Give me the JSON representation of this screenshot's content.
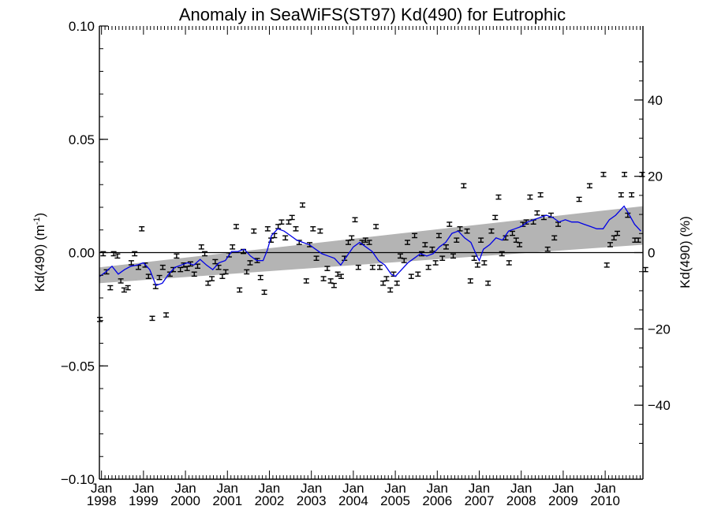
{
  "chart_data": {
    "type": "scatter",
    "title": "Anomaly in SeaWiFS(ST97) Kd(490) for Eutrophic",
    "ylabel_left": "Kd(490) (m",
    "ylabel_left_sup": "-1",
    "ylabel_left_close": ")",
    "ylabel_right": "Kd(490) (%)",
    "xlim": [
      1997.95,
      2010.9
    ],
    "ylim_left": [
      -0.1,
      0.1
    ],
    "ylim_right": [
      -59.4,
      59.4
    ],
    "left_ticks": [
      {
        "value": 0.1,
        "label": "0.10"
      },
      {
        "value": 0.05,
        "label": "0.05"
      },
      {
        "value": 0.0,
        "label": "0.00"
      },
      {
        "value": -0.05,
        "label": "−0.05"
      },
      {
        "value": -0.1,
        "label": "−0.10"
      }
    ],
    "right_ticks": [
      {
        "value": 40,
        "label": "40"
      },
      {
        "value": 20,
        "label": "20"
      },
      {
        "value": 0,
        "label": "0"
      },
      {
        "value": -20,
        "label": "−20"
      },
      {
        "value": -40,
        "label": "−40"
      }
    ],
    "x_ticks": [
      {
        "value": 1998.0,
        "month": "Jan",
        "year": "1998"
      },
      {
        "value": 1999.0,
        "month": "Jan",
        "year": "1999"
      },
      {
        "value": 2000.0,
        "month": "Jan",
        "year": "2000"
      },
      {
        "value": 2001.0,
        "month": "Jan",
        "year": "2001"
      },
      {
        "value": 2002.0,
        "month": "Jan",
        "year": "2002"
      },
      {
        "value": 2003.0,
        "month": "Jan",
        "year": "2003"
      },
      {
        "value": 2004.0,
        "month": "Jan",
        "year": "2004"
      },
      {
        "value": 2005.0,
        "month": "Jan",
        "year": "2005"
      },
      {
        "value": 2006.0,
        "month": "Jan",
        "year": "2006"
      },
      {
        "value": 2007.0,
        "month": "Jan",
        "year": "2007"
      },
      {
        "value": 2008.0,
        "month": "Jan",
        "year": "2008"
      },
      {
        "value": 2009.0,
        "month": "Jan",
        "year": "2009"
      },
      {
        "value": 2010.0,
        "month": "Jan",
        "year": "2010"
      }
    ],
    "zero_line": 0.0,
    "trend_band": {
      "x": [
        1997.95,
        2010.9
      ],
      "upper": [
        -0.0065,
        0.0205
      ],
      "lower": [
        -0.0135,
        0.0035
      ],
      "color": "#b4b4b4"
    },
    "series": [
      {
        "type": "errorbar_points",
        "color": "#000000",
        "error": 0.0009,
        "points": [
          [
            1997.96,
            -0.0295
          ],
          [
            1998.04,
            -0.0005
          ],
          [
            1998.12,
            -0.0085
          ],
          [
            1998.21,
            -0.0155
          ],
          [
            1998.29,
            -0.0005
          ],
          [
            1998.38,
            -0.0015
          ],
          [
            1998.46,
            -0.0125
          ],
          [
            1998.54,
            -0.0165
          ],
          [
            1998.63,
            -0.0155
          ],
          [
            1998.71,
            -0.0045
          ],
          [
            1998.79,
            -0.0005
          ],
          [
            1998.88,
            -0.0065
          ],
          [
            1998.96,
            0.0105
          ],
          [
            1999.04,
            -0.0055
          ],
          [
            1999.12,
            -0.0105
          ],
          [
            1999.21,
            -0.029
          ],
          [
            1999.29,
            -0.015
          ],
          [
            1999.38,
            -0.011
          ],
          [
            1999.46,
            -0.0065
          ],
          [
            1999.54,
            -0.0275
          ],
          [
            1999.63,
            -0.0095
          ],
          [
            1999.71,
            -0.0075
          ],
          [
            1999.79,
            -0.0015
          ],
          [
            1999.88,
            -0.0075
          ],
          [
            1999.96,
            -0.0055
          ],
          [
            2000.04,
            -0.007
          ],
          [
            2000.12,
            -0.005
          ],
          [
            2000.21,
            -0.0095
          ],
          [
            2000.29,
            -0.006
          ],
          [
            2000.38,
            0.0025
          ],
          [
            2000.46,
            -0.0005
          ],
          [
            2000.54,
            -0.0135
          ],
          [
            2000.63,
            -0.0115
          ],
          [
            2000.71,
            -0.004
          ],
          [
            2000.79,
            -0.0065
          ],
          [
            2000.88,
            -0.0105
          ],
          [
            2000.96,
            -0.0085
          ],
          [
            2001.04,
            -0.001
          ],
          [
            2001.12,
            0.0025
          ],
          [
            2001.21,
            0.0115
          ],
          [
            2001.29,
            -0.0165
          ],
          [
            2001.38,
            0.0005
          ],
          [
            2001.46,
            -0.0085
          ],
          [
            2001.54,
            -0.0045
          ],
          [
            2001.63,
            0.0095
          ],
          [
            2001.71,
            -0.0035
          ],
          [
            2001.79,
            -0.011
          ],
          [
            2001.88,
            -0.0175
          ],
          [
            2001.96,
            0.0105
          ],
          [
            2002.04,
            0.0055
          ],
          [
            2002.12,
            0.0075
          ],
          [
            2002.21,
            0.0115
          ],
          [
            2002.29,
            0.0135
          ],
          [
            2002.38,
            0.0065
          ],
          [
            2002.46,
            0.0135
          ],
          [
            2002.54,
            0.0155
          ],
          [
            2002.63,
            0.0105
          ],
          [
            2002.71,
            0.0045
          ],
          [
            2002.79,
            0.021
          ],
          [
            2002.88,
            -0.0125
          ],
          [
            2002.96,
            0.0035
          ],
          [
            2003.04,
            0.0105
          ],
          [
            2003.12,
            -0.0025
          ],
          [
            2003.21,
            0.0095
          ],
          [
            2003.29,
            -0.0115
          ],
          [
            2003.38,
            -0.007
          ],
          [
            2003.46,
            -0.0125
          ],
          [
            2003.54,
            -0.0145
          ],
          [
            2003.63,
            -0.0095
          ],
          [
            2003.71,
            -0.0105
          ],
          [
            2003.79,
            -0.0025
          ],
          [
            2003.88,
            0.0045
          ],
          [
            2003.96,
            0.0065
          ],
          [
            2004.04,
            0.0145
          ],
          [
            2004.12,
            -0.0065
          ],
          [
            2004.21,
            0.0045
          ],
          [
            2004.29,
            0.0055
          ],
          [
            2004.38,
            0.0045
          ],
          [
            2004.46,
            -0.0065
          ],
          [
            2004.54,
            0.0115
          ],
          [
            2004.63,
            -0.0065
          ],
          [
            2004.71,
            -0.0135
          ],
          [
            2004.79,
            -0.0115
          ],
          [
            2004.88,
            -0.0165
          ],
          [
            2004.96,
            -0.0095
          ],
          [
            2005.04,
            -0.0135
          ],
          [
            2005.12,
            -0.0015
          ],
          [
            2005.21,
            -0.0035
          ],
          [
            2005.29,
            0.0045
          ],
          [
            2005.38,
            -0.0105
          ],
          [
            2005.46,
            0.0075
          ],
          [
            2005.54,
            -0.0095
          ],
          [
            2005.63,
            -0.0005
          ],
          [
            2005.71,
            0.0035
          ],
          [
            2005.79,
            -0.0065
          ],
          [
            2005.88,
            0.0015
          ],
          [
            2005.96,
            -0.0045
          ],
          [
            2006.04,
            0.0075
          ],
          [
            2006.12,
            -0.0025
          ],
          [
            2006.21,
            0.0025
          ],
          [
            2006.29,
            0.0125
          ],
          [
            2006.38,
            -0.0015
          ],
          [
            2006.46,
            0.0055
          ],
          [
            2006.54,
            0.0105
          ],
          [
            2006.63,
            0.0295
          ],
          [
            2006.71,
            0.0095
          ],
          [
            2006.79,
            -0.0125
          ],
          [
            2006.88,
            -0.0025
          ],
          [
            2006.96,
            -0.0055
          ],
          [
            2007.04,
            0.0055
          ],
          [
            2007.12,
            -0.0045
          ],
          [
            2007.21,
            -0.0135
          ],
          [
            2007.29,
            0.0095
          ],
          [
            2007.38,
            0.0155
          ],
          [
            2007.46,
            0.0245
          ],
          [
            2007.54,
            -0.0005
          ],
          [
            2007.63,
            0.0065
          ],
          [
            2007.71,
            -0.0045
          ],
          [
            2007.79,
            0.0085
          ],
          [
            2007.88,
            0.0055
          ],
          [
            2007.96,
            0.0035
          ],
          [
            2008.04,
            0.0125
          ],
          [
            2008.12,
            0.0135
          ],
          [
            2008.21,
            0.0245
          ],
          [
            2008.29,
            0.0135
          ],
          [
            2008.38,
            0.0175
          ],
          [
            2008.46,
            0.0255
          ],
          [
            2008.54,
            0.0155
          ],
          [
            2008.63,
            0.0015
          ],
          [
            2008.71,
            0.0165
          ],
          [
            2008.79,
            0.0065
          ],
          [
            2008.88,
            0.0125
          ],
          [
            2009.38,
            0.0235
          ],
          [
            2009.63,
            0.0295
          ],
          [
            2009.96,
            0.0345
          ],
          [
            2010.04,
            -0.0055
          ],
          [
            2010.12,
            0.0035
          ],
          [
            2010.21,
            0.0065
          ],
          [
            2010.29,
            0.0085
          ],
          [
            2010.38,
            0.0255
          ],
          [
            2010.46,
            0.0345
          ],
          [
            2010.54,
            0.0165
          ],
          [
            2010.63,
            0.0255
          ],
          [
            2010.71,
            0.0055
          ],
          [
            2010.79,
            0.0055
          ],
          [
            2010.88,
            0.0345
          ],
          [
            2010.96,
            -0.0075
          ]
        ]
      },
      {
        "type": "line",
        "color": "#0000e6",
        "points": [
          [
            1997.96,
            -0.0105
          ],
          [
            1998.1,
            -0.0085
          ],
          [
            1998.25,
            -0.006
          ],
          [
            1998.4,
            -0.0095
          ],
          [
            1998.55,
            -0.0075
          ],
          [
            1998.7,
            -0.006
          ],
          [
            1998.85,
            -0.0055
          ],
          [
            1999.0,
            -0.0045
          ],
          [
            1999.15,
            -0.0075
          ],
          [
            1999.3,
            -0.0145
          ],
          [
            1999.45,
            -0.0135
          ],
          [
            1999.6,
            -0.0095
          ],
          [
            1999.75,
            -0.0065
          ],
          [
            1999.9,
            -0.0055
          ],
          [
            2000.05,
            -0.0045
          ],
          [
            2000.2,
            -0.0055
          ],
          [
            2000.35,
            -0.003
          ],
          [
            2000.5,
            -0.0055
          ],
          [
            2000.65,
            -0.0075
          ],
          [
            2000.8,
            -0.0045
          ],
          [
            2000.95,
            -0.0035
          ],
          [
            2001.1,
            0.0005
          ],
          [
            2001.25,
            0.0005
          ],
          [
            2001.4,
            0.0015
          ],
          [
            2001.55,
            -0.0015
          ],
          [
            2001.7,
            -0.0035
          ],
          [
            2001.85,
            -0.0035
          ],
          [
            2001.95,
            0.001
          ],
          [
            2002.05,
            0.0075
          ],
          [
            2002.2,
            0.0105
          ],
          [
            2002.35,
            0.0095
          ],
          [
            2002.5,
            0.0075
          ],
          [
            2002.65,
            0.0055
          ],
          [
            2002.8,
            0.0045
          ],
          [
            2002.95,
            0.0035
          ],
          [
            2003.1,
            0.0015
          ],
          [
            2003.25,
            -0.0005
          ],
          [
            2003.4,
            -0.0015
          ],
          [
            2003.55,
            -0.0025
          ],
          [
            2003.7,
            -0.0055
          ],
          [
            2003.85,
            -0.0015
          ],
          [
            2004.0,
            0.0025
          ],
          [
            2004.15,
            0.0045
          ],
          [
            2004.3,
            0.0025
          ],
          [
            2004.45,
            0.0005
          ],
          [
            2004.6,
            -0.0035
          ],
          [
            2004.75,
            -0.0055
          ],
          [
            2004.9,
            -0.0095
          ],
          [
            2005.0,
            -0.0105
          ],
          [
            2005.15,
            -0.0075
          ],
          [
            2005.3,
            -0.0045
          ],
          [
            2005.45,
            -0.0025
          ],
          [
            2005.6,
            -0.0005
          ],
          [
            2005.75,
            -0.0015
          ],
          [
            2005.9,
            -0.0005
          ],
          [
            2006.05,
            0.0025
          ],
          [
            2006.2,
            0.0045
          ],
          [
            2006.35,
            0.0085
          ],
          [
            2006.5,
            0.0095
          ],
          [
            2006.65,
            0.0065
          ],
          [
            2006.8,
            0.0045
          ],
          [
            2006.92,
            -0.0005
          ],
          [
            2007.0,
            -0.0035
          ],
          [
            2007.1,
            0.0015
          ],
          [
            2007.25,
            0.0035
          ],
          [
            2007.4,
            0.0065
          ],
          [
            2007.55,
            0.0055
          ],
          [
            2007.7,
            0.0095
          ],
          [
            2007.85,
            0.0105
          ],
          [
            2008.0,
            0.0115
          ],
          [
            2008.15,
            0.0135
          ],
          [
            2008.3,
            0.0145
          ],
          [
            2008.45,
            0.0155
          ],
          [
            2008.6,
            0.0165
          ],
          [
            2008.75,
            0.0155
          ],
          [
            2008.9,
            0.0135
          ],
          [
            2009.05,
            0.0145
          ],
          [
            2009.2,
            0.0135
          ],
          [
            2009.35,
            0.0135
          ],
          [
            2009.5,
            0.0125
          ],
          [
            2009.65,
            0.0115
          ],
          [
            2009.8,
            0.0105
          ],
          [
            2009.95,
            0.0105
          ],
          [
            2010.1,
            0.0145
          ],
          [
            2010.25,
            0.0165
          ],
          [
            2010.35,
            0.0185
          ],
          [
            2010.45,
            0.0205
          ],
          [
            2010.55,
            0.0175
          ],
          [
            2010.7,
            0.0125
          ],
          [
            2010.85,
            0.0095
          ]
        ]
      }
    ]
  }
}
